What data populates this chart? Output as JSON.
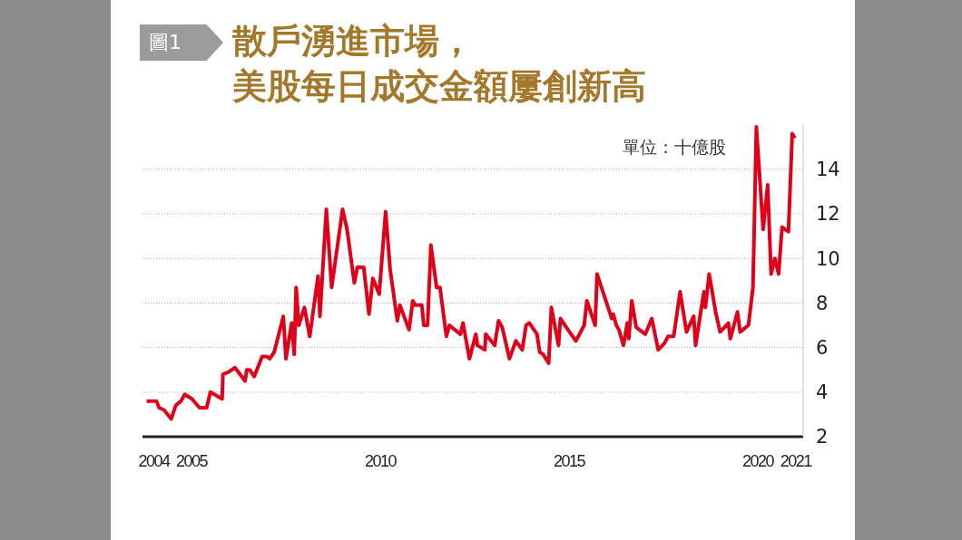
{
  "chart_data": {
    "type": "line",
    "title": "散戶湧進市場，",
    "subtitle": "美股每日成交金額屢創新高",
    "ylabel": "單位：十億股",
    "annotations": [
      "圖1"
    ],
    "x": [
      2003.81,
      2004.07,
      2004.14,
      2004.27,
      2004.46,
      2004.58,
      2004.72,
      2004.82,
      2005.01,
      2005.21,
      2005.4,
      2005.5,
      2005.81,
      2005.83,
      2005.98,
      2006.15,
      2006.42,
      2006.46,
      2006.54,
      2006.66,
      2006.87,
      2006.99,
      2007.07,
      2007.19,
      2007.43,
      2007.5,
      2007.65,
      2007.72,
      2007.77,
      2007.84,
      2007.99,
      2008.13,
      2008.35,
      2008.4,
      2008.57,
      2008.71,
      2009.0,
      2009.12,
      2009.31,
      2009.39,
      2009.56,
      2009.7,
      2009.8,
      2009.97,
      2010.14,
      2010.26,
      2010.45,
      2010.52,
      2010.76,
      2010.86,
      2010.93,
      2011.1,
      2011.15,
      2011.25,
      2011.34,
      2011.49,
      2011.58,
      2011.75,
      2011.83,
      2012.12,
      2012.19,
      2012.36,
      2012.53,
      2012.57,
      2012.77,
      2012.79,
      2013.03,
      2013.13,
      2013.23,
      2013.42,
      2013.59,
      2013.76,
      2013.86,
      2013.95,
      2014.15,
      2014.22,
      2014.31,
      2014.46,
      2014.53,
      2014.72,
      2014.77,
      2014.97,
      2015.18,
      2015.4,
      2015.47,
      2015.69,
      2015.74,
      2016.13,
      2016.17,
      2016.25,
      2016.32,
      2016.44,
      2016.54,
      2016.58,
      2016.66,
      2016.78,
      2017.02,
      2017.19,
      2017.36,
      2017.53,
      2017.62,
      2017.77,
      2017.94,
      2018.11,
      2018.3,
      2018.35,
      2018.57,
      2018.61,
      2018.71,
      2018.88,
      2019.0,
      2019.22,
      2019.27,
      2019.46,
      2019.53,
      2019.75,
      2019.87,
      2019.96,
      2020.14,
      2020.26,
      2020.35,
      2020.45,
      2020.55,
      2020.64,
      2020.81,
      2020.91,
      2020.98
    ],
    "series": [
      {
        "color": "#e1001a",
        "values": [
          3.6,
          3.6,
          3.3,
          3.2,
          2.8,
          3.4,
          3.6,
          3.9,
          3.7,
          3.3,
          3.3,
          4.0,
          3.7,
          4.8,
          4.9,
          5.1,
          4.5,
          5.0,
          5.0,
          4.7,
          5.6,
          5.6,
          5.5,
          5.8,
          7.4,
          5.5,
          7.1,
          5.7,
          8.7,
          7.0,
          7.8,
          6.5,
          9.2,
          7.4,
          12.2,
          8.7,
          12.2,
          11.3,
          8.9,
          9.6,
          9.6,
          7.5,
          9.1,
          8.4,
          12.1,
          9.5,
          7.2,
          7.9,
          6.8,
          8.1,
          7.9,
          7.9,
          7.0,
          7.0,
          10.6,
          8.7,
          8.7,
          6.5,
          7.0,
          6.6,
          7.1,
          5.5,
          6.6,
          6.1,
          5.9,
          6.6,
          6.1,
          7.2,
          6.9,
          5.5,
          6.3,
          5.9,
          7.0,
          7.1,
          6.6,
          5.8,
          5.7,
          5.3,
          7.8,
          6.1,
          7.3,
          6.8,
          6.3,
          7.0,
          8.1,
          7.0,
          9.3,
          7.3,
          7.5,
          7.0,
          6.8,
          6.1,
          7.1,
          6.4,
          8.1,
          6.9,
          6.6,
          7.3,
          5.9,
          6.2,
          6.5,
          6.5,
          8.5,
          6.7,
          7.4,
          6.1,
          8.5,
          7.8,
          9.3,
          7.6,
          6.7,
          7.1,
          6.4,
          7.6,
          6.7,
          7.0,
          8.7,
          15.9,
          11.3,
          13.3,
          9.3,
          10.0,
          9.3,
          11.4,
          11.2,
          15.6,
          15.4
        ]
      }
    ],
    "xlim": [
      2003.7,
      2021.2
    ],
    "xticks": [
      2004,
      2005,
      2010,
      2015,
      2020,
      2021
    ],
    "yticks": [
      2,
      4,
      6,
      8,
      10,
      12,
      14
    ],
    "ylim": [
      2,
      16
    ],
    "grid": "y",
    "marker": "none",
    "line_style": "solid"
  }
}
